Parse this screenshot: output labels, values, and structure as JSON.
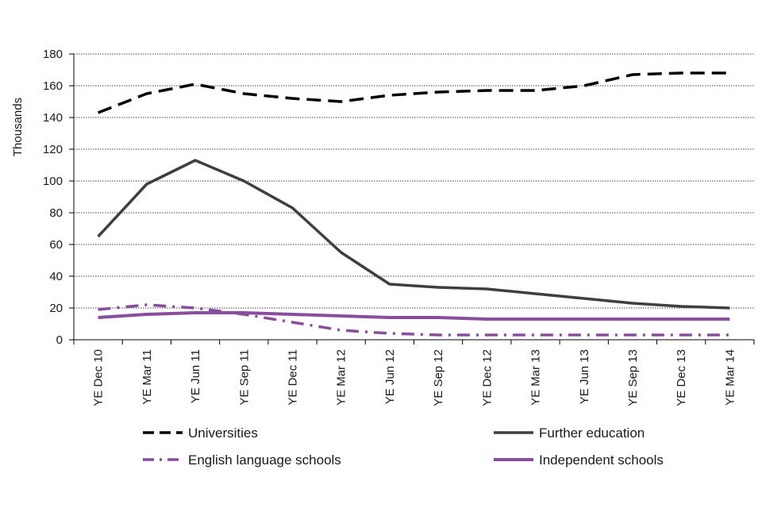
{
  "chart_data": {
    "type": "line",
    "title": "",
    "ylabel": "Thousands",
    "xlabel": "",
    "ylim": [
      0,
      180
    ],
    "yticks": [
      0,
      20,
      40,
      60,
      80,
      100,
      120,
      140,
      160,
      180
    ],
    "grid": "horizontal dotted",
    "legend_position": "bottom",
    "categories": [
      "YE Dec 10",
      "YE Mar 11",
      "YE Jun 11",
      "YE Sep 11",
      "YE Dec 11",
      "YE Mar 12",
      "YE Jun 12",
      "YE Sep 12",
      "YE Dec 12",
      "YE Mar 13",
      "YE Jun 13",
      "YE Sep 13",
      "YE Dec 13",
      "YE Mar 14"
    ],
    "series": [
      {
        "name": "Universities",
        "color": "#000000",
        "style": "long-dash",
        "values": [
          143,
          155,
          161,
          155,
          152,
          150,
          154,
          156,
          157,
          157,
          160,
          167,
          168,
          168
        ]
      },
      {
        "name": "Further education",
        "color": "#3f3f3f",
        "style": "solid",
        "values": [
          65,
          98,
          113,
          100,
          83,
          55,
          35,
          33,
          32,
          29,
          26,
          23,
          21,
          20
        ]
      },
      {
        "name": "English language schools",
        "color": "#8a4d9e",
        "style": "dash-dot",
        "values": [
          19,
          22,
          20,
          16,
          11,
          6,
          4,
          3,
          3,
          3,
          3,
          3,
          3,
          3
        ]
      },
      {
        "name": "Independent schools",
        "color": "#8a4d9e",
        "style": "solid",
        "values": [
          14,
          16,
          17,
          17,
          16,
          15,
          14,
          14,
          13,
          13,
          13,
          13,
          13,
          13
        ]
      }
    ]
  }
}
